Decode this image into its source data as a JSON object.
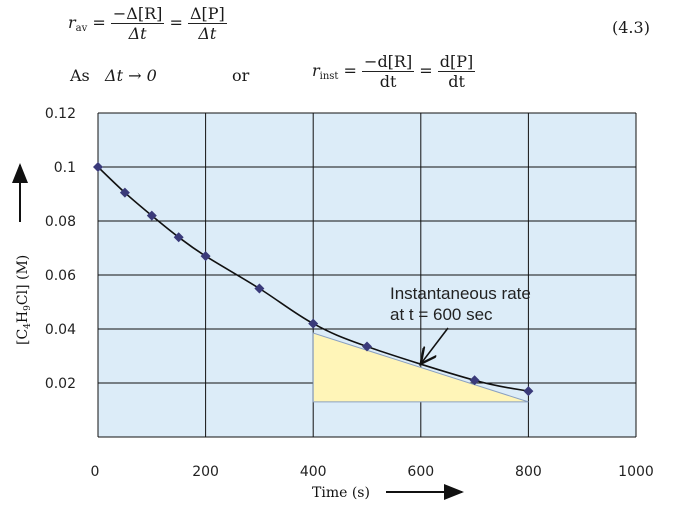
{
  "equations": {
    "eq1": {
      "lhs_symbol": "r",
      "lhs_sub": "av",
      "frac1_num": "−Δ[R]",
      "frac1_den": "Δt",
      "frac2_num": "Δ[P]",
      "frac2_den": "Δt",
      "number": "(4.3)"
    },
    "eq2": {
      "as_text": "As",
      "limit": "Δt → 0",
      "or_text": "or",
      "lhs_symbol": "r",
      "lhs_sub": "inst",
      "frac1_num": "−d[R]",
      "frac1_den": "dt",
      "frac2_num": "d[P]",
      "frac2_den": "dt"
    }
  },
  "chart_data": {
    "type": "scatter",
    "xlabel": "Time (s)",
    "ylabel": "[C4H9Cl] (M)",
    "ylabel_parts": {
      "pre": "[C",
      "sub1": "4",
      "mid": "H",
      "sub2": "9",
      "post": "Cl] (M)"
    },
    "xlim": [
      0,
      1000
    ],
    "ylim": [
      0,
      0.12
    ],
    "x_ticks": [
      0,
      200,
      400,
      600,
      800,
      1000
    ],
    "x_tick_labels": [
      "0",
      "200",
      "400",
      "600",
      "800",
      "1000"
    ],
    "y_ticks": [
      0.02,
      0.04,
      0.06,
      0.08,
      0.1,
      0.12
    ],
    "y_tick_labels": [
      "0.02",
      "0.04",
      "0.06",
      "0.08",
      "0.1",
      "0.12"
    ],
    "grid": true,
    "series": [
      {
        "x": [
          0,
          50,
          100,
          150,
          200,
          300,
          400,
          500,
          700,
          800
        ],
        "y": [
          0.1,
          0.0905,
          0.082,
          0.074,
          0.067,
          0.055,
          0.042,
          0.0335,
          0.021,
          0.017
        ]
      }
    ],
    "tangent_triangle": {
      "x": [
        400,
        800
      ],
      "y_top": 0.0385,
      "y_bottom": 0.013
    },
    "annotation": {
      "line1": "Instantaneous rate",
      "line2": "at t = 600 sec",
      "point_x": 600,
      "point_y": 0.026
    },
    "colors": {
      "plot_background": "#dcecf8",
      "grid": "#111111",
      "marker": "#3a3a7a",
      "curve": "#111111",
      "triangle_fill": "#fff5b8",
      "triangle_edge": "#8aa0c0"
    }
  }
}
